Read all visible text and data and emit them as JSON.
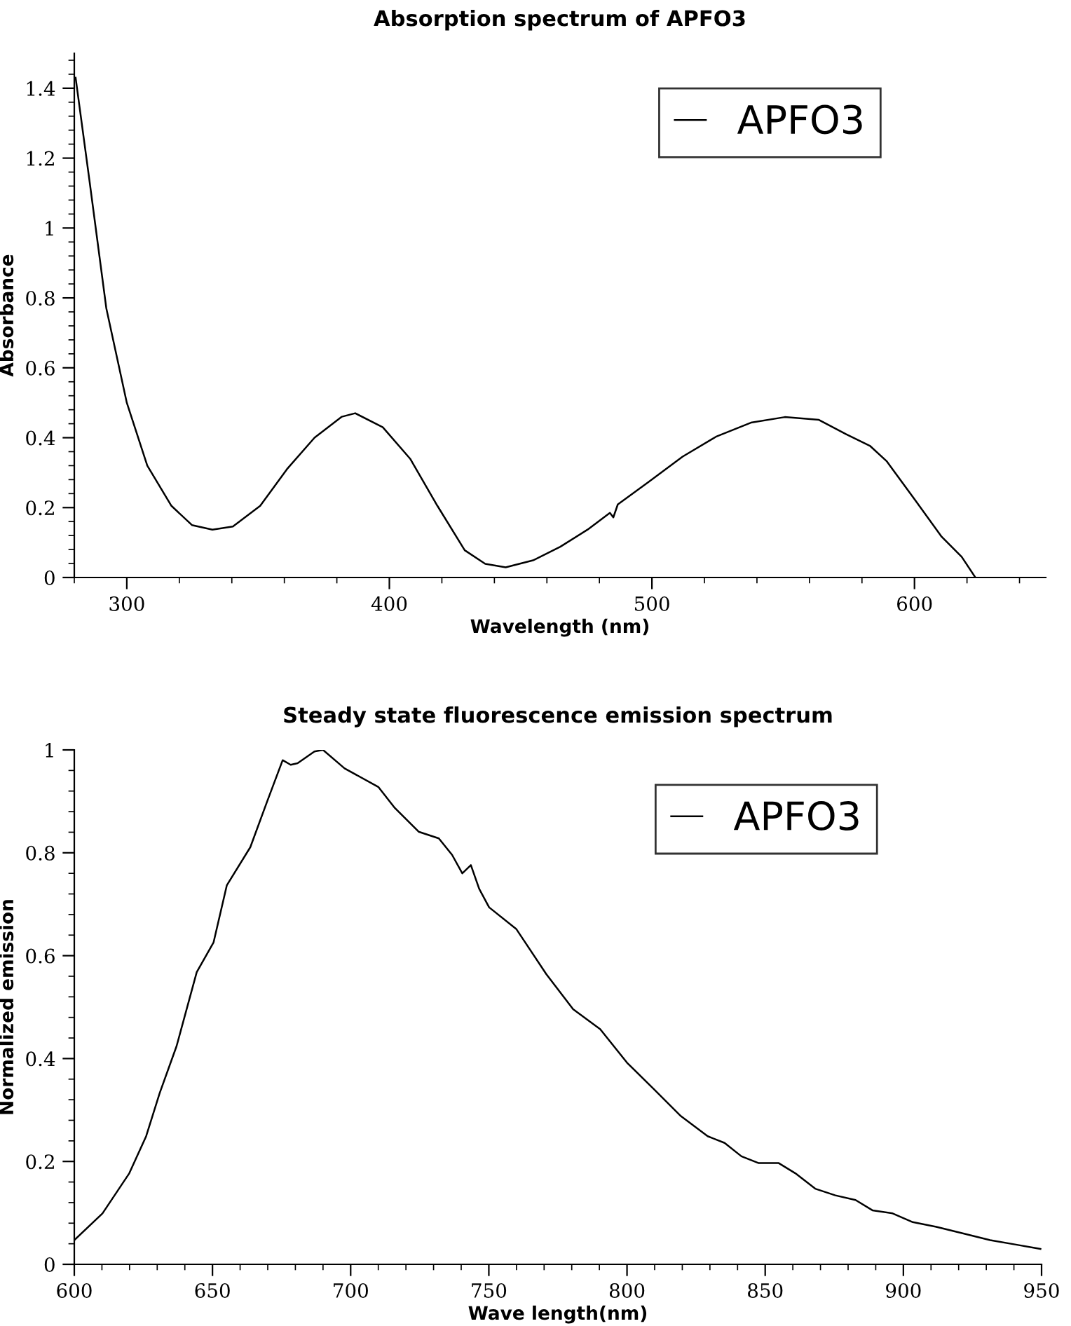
{
  "chart_data": [
    {
      "type": "line",
      "title": "Absorption spectrum of APFO3",
      "xlabel": "Wavelength (nm)",
      "ylabel": "Absorbance",
      "legend": "top right",
      "grid": false,
      "xlim": [
        280,
        650
      ],
      "xticks": [
        300,
        400,
        500,
        600
      ],
      "ylim": [
        0,
        1.5
      ],
      "yticks": [
        0,
        0.2,
        0.4,
        0.6,
        0.8,
        1,
        1.2,
        1.4
      ],
      "series": [
        {
          "name": "APFO3",
          "color": "#000000",
          "x": [
            280.5,
            285.7,
            292.2,
            300,
            307.8,
            317,
            324.8,
            332.6,
            340.4,
            350.8,
            361,
            371.5,
            381.9,
            387,
            397.5,
            407.9,
            418.3,
            428.7,
            436.5,
            444.3,
            454.7,
            465.1,
            475.5,
            484,
            485.3,
            487,
            498.7,
            511.7,
            524.7,
            537.7,
            550.6,
            563.6,
            574,
            583,
            589.5,
            599.9,
            610.3,
            618,
            623.2
          ],
          "values": [
            1.43,
            1.14,
            0.77,
            0.5,
            0.32,
            0.205,
            0.15,
            0.137,
            0.146,
            0.205,
            0.31,
            0.4,
            0.46,
            0.47,
            0.43,
            0.34,
            0.205,
            0.078,
            0.039,
            0.029,
            0.049,
            0.088,
            0.137,
            0.185,
            0.172,
            0.209,
            0.273,
            0.346,
            0.404,
            0.443,
            0.459,
            0.451,
            0.41,
            0.377,
            0.332,
            0.225,
            0.117,
            0.059,
            0.0
          ]
        }
      ]
    },
    {
      "type": "line",
      "title": "Steady state fluorescence emission spectrum",
      "xlabel": "Wave length(nm)",
      "ylabel": "Normalized emission",
      "legend": "top right",
      "grid": false,
      "xlim": [
        600,
        950
      ],
      "xticks": [
        600,
        650,
        700,
        750,
        800,
        850,
        900,
        950
      ],
      "ylim": [
        0,
        1
      ],
      "yticks": [
        0,
        0.2,
        0.4,
        0.6,
        0.8,
        1
      ],
      "series": [
        {
          "name": "APFO3",
          "color": "#000000",
          "x": [
            600,
            610.2,
            619.9,
            626,
            630.9,
            637,
            644.3,
            650.4,
            655.2,
            663.7,
            669.8,
            675.4,
            678.3,
            680.8,
            686.9,
            690,
            697.8,
            710,
            716,
            724.6,
            731.9,
            736.7,
            740.4,
            743.5,
            746.5,
            750.1,
            759.9,
            770.8,
            780.5,
            790.3,
            800,
            809.8,
            819.5,
            829.2,
            835.3,
            841.4,
            847.5,
            854.8,
            860.9,
            868.1,
            875.4,
            882.7,
            888.8,
            896.1,
            903.4,
            911.9,
            921.7,
            931.4,
            941.1,
            949.6
          ],
          "values": [
            0.047,
            0.099,
            0.177,
            0.249,
            0.333,
            0.424,
            0.568,
            0.626,
            0.737,
            0.811,
            0.9,
            0.98,
            0.971,
            0.974,
            0.997,
            1.0,
            0.964,
            0.928,
            0.887,
            0.841,
            0.828,
            0.796,
            0.76,
            0.776,
            0.73,
            0.694,
            0.652,
            0.564,
            0.496,
            0.457,
            0.392,
            0.34,
            0.288,
            0.249,
            0.236,
            0.21,
            0.197,
            0.197,
            0.177,
            0.147,
            0.134,
            0.125,
            0.105,
            0.099,
            0.082,
            0.073,
            0.06,
            0.047,
            0.038,
            0.03
          ]
        }
      ]
    }
  ]
}
